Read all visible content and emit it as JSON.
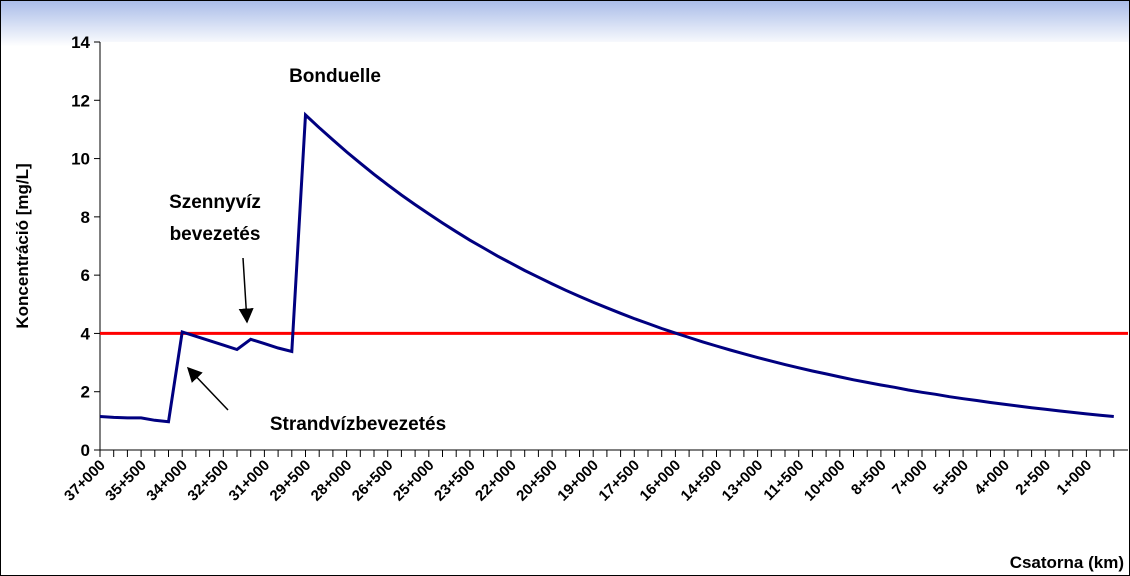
{
  "chart_data": {
    "type": "line",
    "y_label": "Koncentráció [mg/L]",
    "x_label": "Csatorna (km)",
    "categories": [
      "37+000",
      null,
      null,
      "35+500",
      null,
      null,
      "34+000",
      null,
      null,
      "32+500",
      null,
      null,
      "31+000",
      null,
      null,
      "29+500",
      null,
      null,
      "28+000",
      null,
      null,
      "26+500",
      null,
      null,
      "25+000",
      null,
      null,
      "23+500",
      null,
      null,
      "22+000",
      null,
      null,
      "20+500",
      null,
      null,
      "19+000",
      null,
      null,
      "17+500",
      null,
      null,
      "16+000",
      null,
      null,
      "14+500",
      null,
      null,
      "13+000",
      null,
      null,
      "11+500",
      null,
      null,
      "10+000",
      null,
      null,
      "8+500",
      null,
      null,
      "7+000",
      null,
      null,
      "5+500",
      null,
      null,
      "4+000",
      null,
      null,
      "2+500",
      null,
      null,
      "1+000",
      null,
      null
    ],
    "series": [
      {
        "color": "#000080",
        "values": [
          1.15,
          1.12,
          1.1,
          1.1,
          1.02,
          0.97,
          4.05,
          3.9,
          3.75,
          3.6,
          3.45,
          3.8,
          3.65,
          3.5,
          3.38,
          11.5,
          11.06,
          10.64,
          10.23,
          9.84,
          9.46,
          9.1,
          8.75,
          8.42,
          8.1,
          7.79,
          7.49,
          7.2,
          6.93,
          6.66,
          6.41,
          6.16,
          5.93,
          5.7,
          5.48,
          5.27,
          5.07,
          4.88,
          4.69,
          4.51,
          4.34,
          4.17,
          4.01,
          3.86,
          3.71,
          3.57,
          3.43,
          3.3,
          3.17,
          3.05,
          2.93,
          2.82,
          2.71,
          2.61,
          2.51,
          2.41,
          2.32,
          2.23,
          2.15,
          2.06,
          1.98,
          1.91,
          1.83,
          1.76,
          1.7,
          1.63,
          1.57,
          1.51,
          1.45,
          1.4,
          1.34,
          1.29,
          1.24,
          1.19,
          1.15
        ]
      }
    ],
    "reference_line": {
      "value": 4,
      "color": "#ff0000"
    },
    "ylim": [
      0,
      14
    ],
    "yticks": [
      0,
      2,
      4,
      6,
      8,
      10,
      12,
      14
    ],
    "annotations": [
      {
        "lines": [
          "Bonduelle"
        ]
      },
      {
        "lines": [
          "Szennyvíz",
          "bevezetés"
        ]
      },
      {
        "lines": [
          "Strandvízbevezetés"
        ]
      }
    ]
  }
}
